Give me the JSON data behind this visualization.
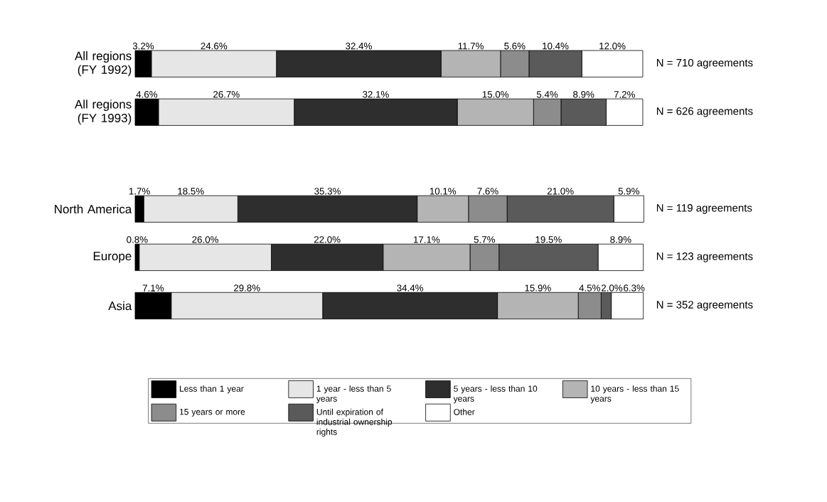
{
  "chart_data": {
    "type": "bar",
    "orientation": "horizontal",
    "stacked": true,
    "categories": [
      "All regions (FY 1992)",
      "All regions (FY 1993)",
      null,
      "North America",
      "Europe",
      "Asia"
    ],
    "xlim": [
      0,
      100
    ],
    "series": [
      {
        "name": "Less than 1 year",
        "color": "#000000",
        "values": [
          3.2,
          4.6,
          null,
          1.7,
          0.8,
          7.1
        ],
        "value_labels": [
          "3.2%",
          "4.6%",
          null,
          "1.7%",
          "0.8%",
          "7.1%"
        ]
      },
      {
        "name": "1 year - less than 5 years",
        "color": "#e6e6e6",
        "values": [
          24.6,
          26.7,
          null,
          18.5,
          26.0,
          29.8
        ],
        "value_labels": [
          "24.6%",
          "26.7%",
          null,
          "18.5%",
          "26.0%",
          "29.8%"
        ]
      },
      {
        "name": "5 years - less than 10 years",
        "color": "#2e2e2e",
        "values": [
          32.4,
          32.1,
          null,
          35.3,
          22.0,
          34.4
        ],
        "value_labels": [
          "32.4%",
          "32.1%",
          null,
          "35.3%",
          "22.0%",
          "34.4%"
        ]
      },
      {
        "name": "10 years - less than 15 years",
        "color": "#b4b4b4",
        "values": [
          11.7,
          15.0,
          null,
          10.1,
          17.1,
          15.9
        ],
        "value_labels": [
          "11.7%",
          "15.0%",
          null,
          "10.1%",
          "17.1%",
          "15.9%"
        ]
      },
      {
        "name": "15 years or more",
        "color": "#8c8c8c",
        "values": [
          5.6,
          5.4,
          null,
          7.6,
          5.7,
          4.5
        ],
        "value_labels": [
          "5.6%",
          "5.4%",
          null,
          "7.6%",
          "5.7%",
          "4.5%"
        ]
      },
      {
        "name": "Until expiration of industrial ownership rights",
        "color": "#5a5a5a",
        "values": [
          10.4,
          8.9,
          null,
          21.0,
          19.5,
          2.0
        ],
        "value_labels": [
          "10.4%",
          "8.9%",
          null,
          "21.0%",
          "19.5%",
          "2.0%"
        ]
      },
      {
        "name": "Other",
        "color": "#ffffff",
        "values": [
          12.0,
          7.2,
          null,
          5.9,
          8.9,
          6.3
        ],
        "value_labels": [
          "12.0%",
          "7.2%",
          null,
          "5.9%",
          "8.9%",
          "6.3%"
        ]
      }
    ],
    "annotations": [
      "N = 710 agreements",
      "N = 626 agreements",
      "N = 119 agreements",
      "N = 123 agreements",
      "N = 352 agreements"
    ],
    "legend": "bottom"
  }
}
